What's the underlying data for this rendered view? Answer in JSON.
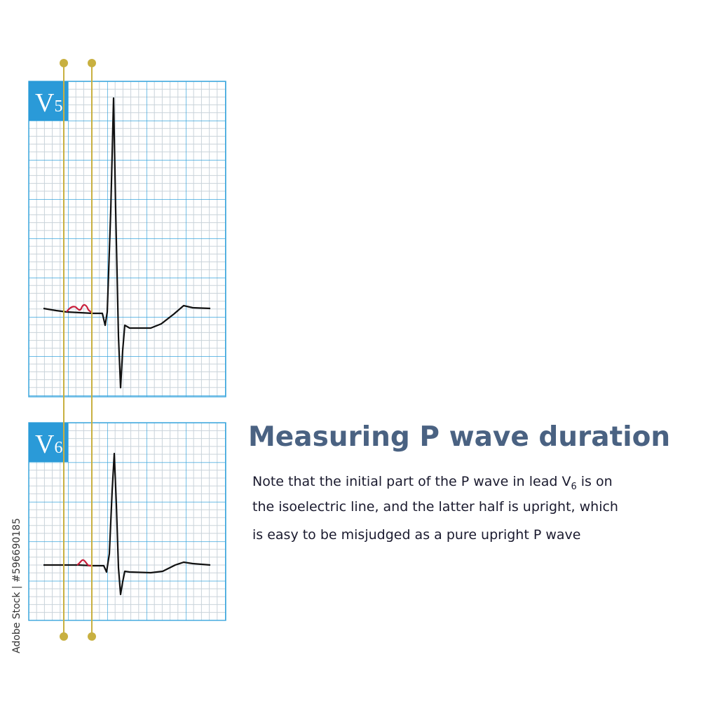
{
  "leads": [
    {
      "label": "V",
      "subscript": "5"
    },
    {
      "label": "V",
      "subscript": "6"
    }
  ],
  "title": "Measuring P wave duration",
  "note": [
    [
      "Note that the initial part of the P wave in lead V",
      "6",
      " is on"
    ],
    "the isoelectric line, and the latter half is upright, which",
    "is easy to be misjudged as a pure upright P wave"
  ],
  "watermark": "Adobe Stock | #596690185"
}
